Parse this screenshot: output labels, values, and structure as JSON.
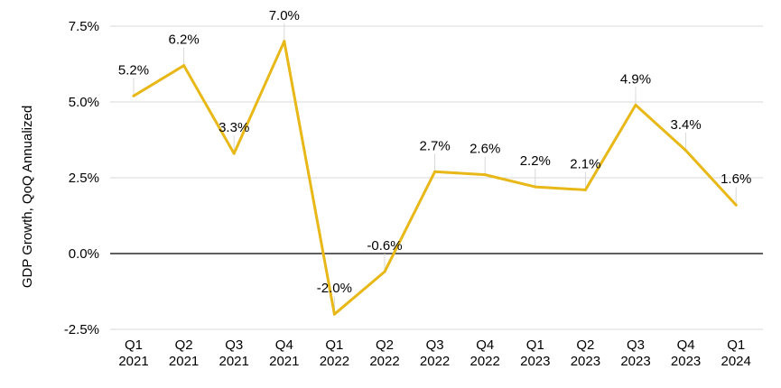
{
  "chart_data": {
    "type": "line",
    "title": "",
    "xlabel": "",
    "ylabel": "GDP Growth, QoQ Annualized",
    "ylim": [
      -2.5,
      7.5
    ],
    "yticks": [
      -2.5,
      0.0,
      2.5,
      5.0,
      7.5
    ],
    "ytick_labels": [
      "-2.5%",
      "0.0%",
      "2.5%",
      "5.0%",
      "7.5%"
    ],
    "grid": true,
    "categories": [
      [
        "Q1",
        "2021"
      ],
      [
        "Q2",
        "2021"
      ],
      [
        "Q3",
        "2021"
      ],
      [
        "Q4",
        "2021"
      ],
      [
        "Q1",
        "2022"
      ],
      [
        "Q2",
        "2022"
      ],
      [
        "Q3",
        "2022"
      ],
      [
        "Q4",
        "2022"
      ],
      [
        "Q1",
        "2023"
      ],
      [
        "Q2",
        "2023"
      ],
      [
        "Q3",
        "2023"
      ],
      [
        "Q4",
        "2023"
      ],
      [
        "Q1",
        "2024"
      ]
    ],
    "series": [
      {
        "values": [
          5.2,
          6.2,
          3.3,
          7.0,
          -2.0,
          -0.6,
          2.7,
          2.6,
          2.2,
          2.1,
          4.9,
          3.4,
          1.6
        ],
        "labels": [
          "5.2%",
          "6.2%",
          "3.3%",
          "7.0%",
          "-2.0%",
          "-0.6%",
          "2.7%",
          "2.6%",
          "2.2%",
          "2.1%",
          "4.9%",
          "3.4%",
          "1.6%"
        ],
        "color": "#e8b818"
      }
    ]
  }
}
